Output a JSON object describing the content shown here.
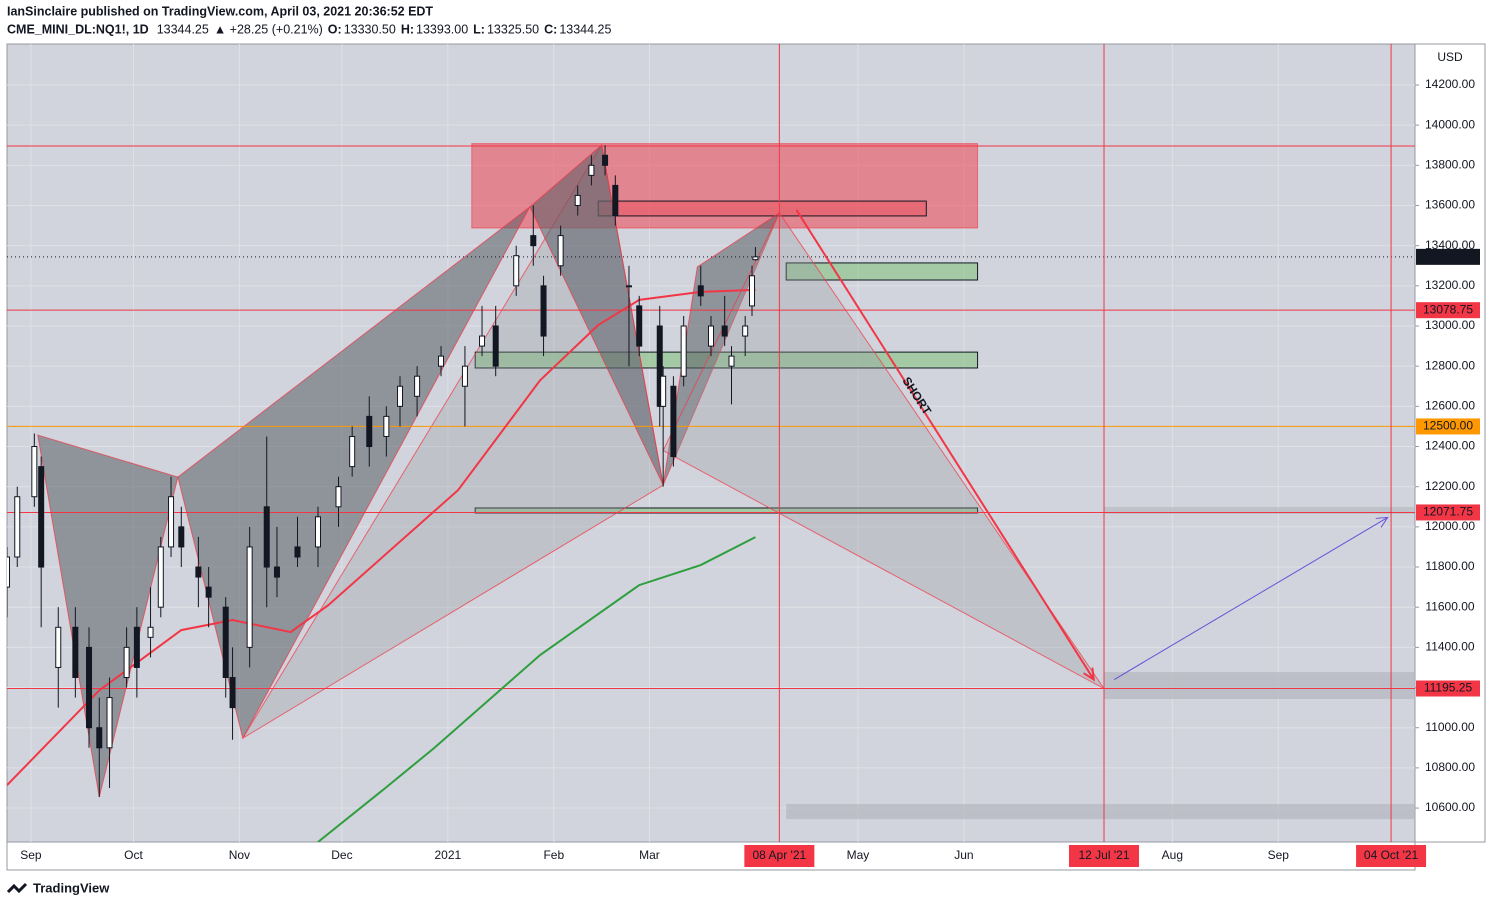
{
  "header": {
    "line1": "IanSinclaire published on TradingView.com, April 03, 2021 20:36:52 EDT",
    "symbol": "CME_MINI_DL:NQ1!, 1D",
    "last": "13344.25",
    "change": "▲ +28.25 (+0.21%)",
    "ohlc": [
      {
        "label": "O:",
        "value": "13330.50"
      },
      {
        "label": "H:",
        "value": "13393.00"
      },
      {
        "label": "L:",
        "value": "13325.50"
      },
      {
        "label": "C:",
        "value": "13344.25"
      }
    ]
  },
  "footer": {
    "brand": "TradingView"
  },
  "chart_data": {
    "type": "candlestick",
    "currency": "USD",
    "xlim": [
      "2020-08-25",
      "2021-10-11"
    ],
    "ylim": [
      10431,
      14404
    ],
    "yticks": [
      {
        "value": 10600,
        "label": "10600.00"
      },
      {
        "value": 10800,
        "label": "10800.00"
      },
      {
        "value": 11000,
        "label": "11000.00"
      },
      {
        "value": 11200,
        "label": "11200.00"
      },
      {
        "value": 11400,
        "label": "11400.00"
      },
      {
        "value": 11600,
        "label": "11600.00"
      },
      {
        "value": 11800,
        "label": "11800.00"
      },
      {
        "value": 12000,
        "label": "12000.00"
      },
      {
        "value": 12200,
        "label": "12200.00"
      },
      {
        "value": 12400,
        "label": "12400.00"
      },
      {
        "value": 12600,
        "label": "12600.00"
      },
      {
        "value": 12800,
        "label": "12800.00"
      },
      {
        "value": 13000,
        "label": "13000.00"
      },
      {
        "value": 13200,
        "label": "13200.00"
      },
      {
        "value": 13400,
        "label": "13400.00"
      },
      {
        "value": 13600,
        "label": "13600.00"
      },
      {
        "value": 13800,
        "label": "13800.00"
      },
      {
        "value": 14000,
        "label": "14000.00"
      },
      {
        "value": 14200,
        "label": "14200.00"
      }
    ],
    "xticks": [
      {
        "value": "2020-09-01",
        "label": "Sep"
      },
      {
        "value": "2020-10-01",
        "label": "Oct"
      },
      {
        "value": "2020-11-01",
        "label": "Nov"
      },
      {
        "value": "2020-12-01",
        "label": "Dec"
      },
      {
        "value": "2021-01-01",
        "label": "2021"
      },
      {
        "value": "2021-02-01",
        "label": "Feb"
      },
      {
        "value": "2021-03-01",
        "label": "Mar"
      },
      {
        "value": "2021-05-01",
        "label": "May"
      },
      {
        "value": "2021-06-01",
        "label": "Jun"
      },
      {
        "value": "2021-08-01",
        "label": "Aug"
      },
      {
        "value": "2021-09-01",
        "label": "Sep"
      }
    ],
    "grid": true,
    "candles": {
      "up_color": "#ffffff",
      "down_color": "#131722",
      "x": [
        "2020-08-25",
        "2020-08-28",
        "2020-09-02",
        "2020-09-04",
        "2020-09-09",
        "2020-09-14",
        "2020-09-18",
        "2020-09-21",
        "2020-09-24",
        "2020-09-29",
        "2020-10-02",
        "2020-10-06",
        "2020-10-09",
        "2020-10-12",
        "2020-10-15",
        "2020-10-20",
        "2020-10-23",
        "2020-10-28",
        "2020-10-30",
        "2020-11-04",
        "2020-11-09",
        "2020-11-12",
        "2020-11-18",
        "2020-11-24",
        "2020-11-30",
        "2020-12-04",
        "2020-12-09",
        "2020-12-14",
        "2020-12-18",
        "2020-12-23",
        "2020-12-30",
        "2021-01-06",
        "2021-01-11",
        "2021-01-15",
        "2021-01-21",
        "2021-01-26",
        "2021-01-29",
        "2021-02-03",
        "2021-02-08",
        "2021-02-12",
        "2021-02-16",
        "2021-02-19",
        "2021-02-23",
        "2021-02-26",
        "2021-03-04",
        "2021-03-05",
        "2021-03-08",
        "2021-03-11",
        "2021-03-16",
        "2021-03-19",
        "2021-03-23",
        "2021-03-25",
        "2021-03-29",
        "2021-03-31",
        "2021-04-01"
      ],
      "open": [
        11700,
        11850,
        12150,
        12300,
        11300,
        11500,
        11400,
        11000,
        10900,
        11250,
        11500,
        11450,
        11600,
        11900,
        12000,
        11800,
        11700,
        11600,
        11250,
        11400,
        12100,
        11800,
        11900,
        11900,
        12100,
        12300,
        12550,
        12450,
        12600,
        12650,
        12800,
        12700,
        12900,
        13000,
        13200,
        13450,
        13200,
        13300,
        13600,
        13750,
        13850,
        13700,
        13200,
        13100,
        13000,
        12600,
        12700,
        12750,
        13200,
        12900,
        13000,
        12800,
        12950,
        13100,
        13330.5
      ],
      "high": [
        11900,
        12200,
        12465,
        12350,
        11600,
        11600,
        11500,
        11150,
        11250,
        11500,
        11600,
        11700,
        11950,
        12250,
        12100,
        11950,
        11800,
        11650,
        11400,
        12000,
        12450,
        12000,
        12050,
        12100,
        12250,
        12500,
        12650,
        12600,
        12750,
        12800,
        12900,
        12900,
        13100,
        13100,
        13400,
        13600,
        13250,
        13500,
        13700,
        13850,
        13900,
        13750,
        13300,
        13150,
        13100,
        12800,
        12750,
        13050,
        13300,
        13050,
        13150,
        12900,
        13050,
        13300,
        13393
      ],
      "low": [
        11550,
        11800,
        12100,
        11500,
        11100,
        11150,
        10900,
        10655,
        10700,
        11200,
        11150,
        11350,
        11550,
        11850,
        11800,
        11600,
        11500,
        11150,
        10940,
        11300,
        11600,
        11650,
        11800,
        11800,
        12000,
        12250,
        12300,
        12350,
        12500,
        12550,
        12750,
        12500,
        12850,
        12750,
        13150,
        13300,
        12850,
        13250,
        13550,
        13700,
        13750,
        13500,
        12800,
        12850,
        12500,
        12200,
        12300,
        12700,
        13100,
        12850,
        12900,
        12610,
        12850,
        13050,
        13325.5
      ],
      "close": [
        11850,
        12150,
        12400,
        11800,
        11500,
        11250,
        11000,
        10900,
        11150,
        11400,
        11300,
        11500,
        11900,
        12150,
        11900,
        11750,
        11650,
        11250,
        11100,
        11900,
        11800,
        11750,
        11850,
        12050,
        12200,
        12450,
        12400,
        12550,
        12700,
        12750,
        12850,
        12800,
        12950,
        12800,
        13350,
        13400,
        12950,
        13450,
        13650,
        13800,
        13800,
        13550,
        13200,
        12900,
        12600,
        12750,
        12350,
        13000,
        13150,
        13000,
        12950,
        12850,
        13000,
        13250,
        13344.25
      ]
    },
    "series": [
      {
        "color": "#f23645",
        "x": [
          "2020-08-25",
          "2020-09-21",
          "2020-10-15",
          "2020-10-30",
          "2020-11-16",
          "2020-11-27",
          "2021-01-04",
          "2021-01-28",
          "2021-02-14",
          "2021-02-26",
          "2021-03-16",
          "2021-04-01"
        ],
        "values": [
          10714,
          11186,
          11486,
          11536,
          11476,
          11610,
          12183,
          12730,
          13005,
          13130,
          13170,
          13180
        ]
      },
      {
        "color": "#2e9e3e",
        "x": [
          "2020-11-24",
          "2020-12-13",
          "2020-12-28",
          "2021-01-28",
          "2021-02-26",
          "2021-03-16",
          "2021-04-01"
        ],
        "values": [
          10431,
          10690,
          10899,
          11362,
          11710,
          11810,
          11949
        ]
      }
    ],
    "levels": [
      {
        "value": 13896,
        "color": "#f23645",
        "style": "solid"
      },
      {
        "value": 13344.25,
        "label": "13344.25",
        "color": "#131722",
        "style": "dotted"
      },
      {
        "value": 13078.75,
        "label": "13078.75",
        "color": "#f23645",
        "style": "solid"
      },
      {
        "value": 12500,
        "label": "12500.00",
        "color": "#ff9800",
        "style": "solid"
      },
      {
        "value": 12071.75,
        "label": "12071.75",
        "color": "#f23645",
        "style": "solid"
      },
      {
        "value": 11195.25,
        "label": "11195.25",
        "color": "#f23645",
        "style": "solid"
      }
    ],
    "vlines": [
      {
        "value": "2021-04-08",
        "label": "08 Apr '21",
        "color": "#f23645"
      },
      {
        "value": "2021-07-12",
        "label": "12 Jul '21",
        "color": "#f23645"
      },
      {
        "value": "2021-10-04",
        "label": "04 Oct '21",
        "color": "#f23645"
      }
    ],
    "zones": [
      {
        "x": [
          "2021-01-08",
          "2021-06-05"
        ],
        "y": [
          13488,
          13908
        ],
        "color": "rgba(242,54,69,0.5)",
        "stroke": "rgba(242,54,69,0.6)"
      },
      {
        "x": [
          "2021-02-14",
          "2021-05-21"
        ],
        "y": [
          13548,
          13622
        ],
        "color": "rgba(242,54,69,0.35)",
        "stroke": "#131722"
      },
      {
        "x": [
          "2021-04-10",
          "2021-06-05"
        ],
        "y": [
          13229,
          13314
        ],
        "color": "rgba(120,190,110,0.5)",
        "stroke": "#131722"
      },
      {
        "x": [
          "2021-01-09",
          "2021-06-05"
        ],
        "y": [
          12791,
          12870
        ],
        "color": "rgba(120,190,110,0.5)",
        "stroke": "#131722"
      },
      {
        "x": [
          "2021-01-09",
          "2021-06-05"
        ],
        "y": [
          12069,
          12094
        ],
        "color": "rgba(120,190,110,0.5)",
        "stroke": "#131722"
      },
      {
        "x": [
          "2021-07-12",
          "2021-10-11"
        ],
        "y": [
          12064,
          12099
        ],
        "color": "rgba(180,182,190,0.6)",
        "stroke": "none"
      },
      {
        "x": [
          "2021-07-12",
          "2021-10-11"
        ],
        "y": [
          11143,
          11277
        ],
        "color": "rgba(180,182,190,0.7)",
        "stroke": "none"
      },
      {
        "x": [
          "2021-04-10",
          "2021-10-11"
        ],
        "y": [
          10545,
          10620
        ],
        "color": "rgba(180,182,190,0.7)",
        "stroke": "none"
      }
    ],
    "patterns": [
      {
        "color": "rgba(90,92,100,0.55)",
        "x": [
          "2020-09-03",
          "2020-09-21",
          "2020-10-14"
        ],
        "values": [
          12457,
          10655,
          12248
        ]
      },
      {
        "color": "rgba(90,92,100,0.55)",
        "x": [
          "2020-10-14",
          "2020-11-02",
          "2021-01-25"
        ],
        "values": [
          12248,
          10948,
          13593
        ]
      },
      {
        "color": "rgba(150,152,160,0.3)",
        "x": [
          "2020-11-02",
          "2021-02-15",
          "2021-03-05"
        ],
        "values": [
          10948,
          13901,
          12208
        ]
      },
      {
        "color": "rgba(90,92,100,0.55)",
        "x": [
          "2021-01-25",
          "2021-02-15",
          "2021-03-05"
        ],
        "values": [
          13593,
          13901,
          12208
        ]
      },
      {
        "color": "rgba(90,92,100,0.55)",
        "x": [
          "2021-03-05",
          "2021-03-15",
          "2021-04-08"
        ],
        "values": [
          12208,
          13294,
          13563
        ]
      },
      {
        "color": "rgba(150,152,160,0.3)",
        "x": [
          "2021-03-05",
          "2021-04-08",
          "2021-07-12"
        ],
        "values": [
          12380,
          13563,
          11195
        ]
      }
    ],
    "arrows": [
      {
        "color": "#f23645",
        "x": [
          "2021-04-13",
          "2021-07-09"
        ],
        "values": [
          13578,
          11240
        ]
      },
      {
        "color": "#6a4fd8",
        "x": [
          "2021-07-15",
          "2021-10-03"
        ],
        "values": [
          11240,
          12047
        ]
      }
    ],
    "annotation": {
      "text": "SHORT",
      "x": "2021-05-18",
      "value": 12650,
      "color": "#f23645"
    }
  }
}
